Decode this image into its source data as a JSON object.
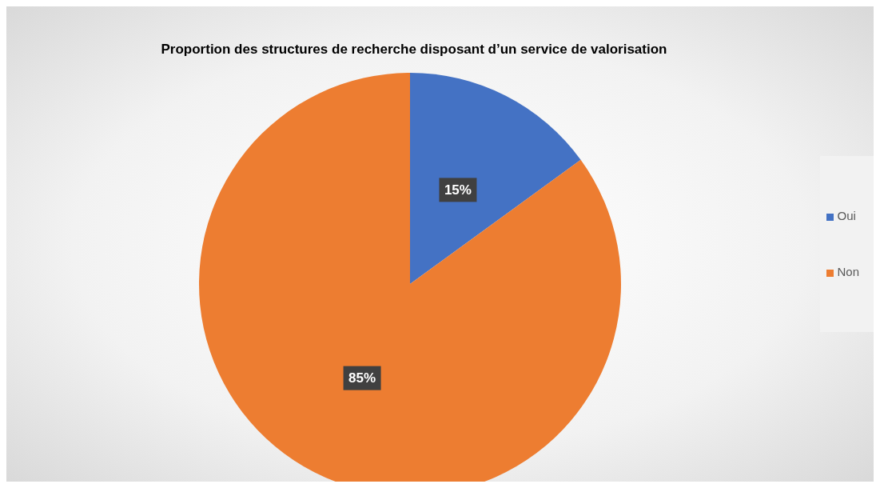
{
  "chart_data": {
    "type": "pie",
    "title": "Proportion des structures de recherche disposant d’un service de valorisation",
    "categories": [
      "Oui",
      "Non"
    ],
    "values": [
      15,
      85
    ],
    "colors": [
      "#4472c4",
      "#ed7d31"
    ],
    "value_labels": [
      "15%",
      "85%"
    ],
    "legend": "right"
  }
}
